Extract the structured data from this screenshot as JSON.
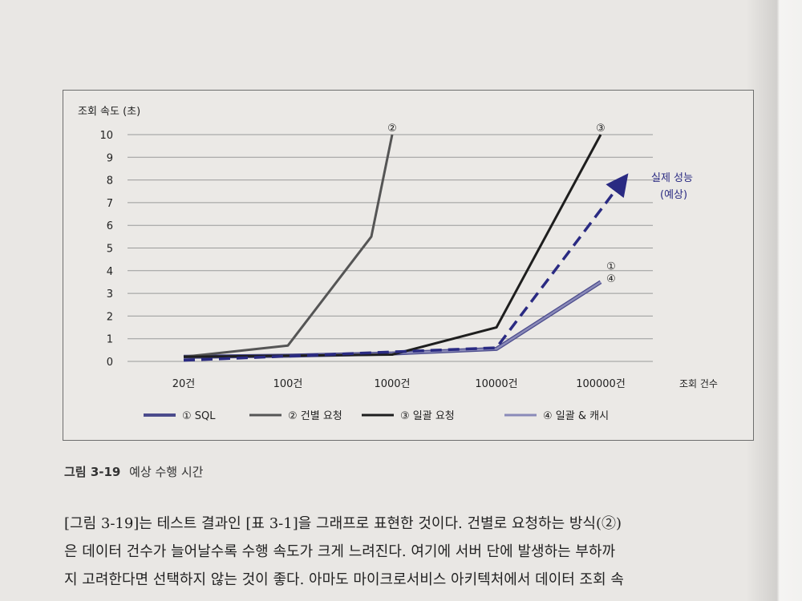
{
  "caption": {
    "figure_no": "그림 3-19",
    "title": "예상 수행 시간"
  },
  "body_lines": [
    "[그림 3-19]는 테스트 결과인 [표 3-1]을 그래프로 표현한 것이다. 건별로 요청하는 방식(②)",
    "은 데이터 건수가 늘어날수록 수행 속도가 크게 느려진다. 여기에 서버 단에 발생하는 부하까",
    "지 고려한다면 선택하지 않는 것이 좋다. 아마도 마이크로서비스 아키텍처에서 데이터 조회 속"
  ],
  "colors": {
    "sql": "#4b4b8c",
    "single": "#555555",
    "batch": "#1e1e1e",
    "batch_cache": "#8a8ab8",
    "actual": "#2a2a82",
    "grid": "#9a9a9a"
  },
  "chart_data": {
    "type": "line",
    "ylabel": "조회 속도 (초)",
    "xlabel": "조회 건수",
    "categories": [
      "20건",
      "100건",
      "1000건",
      "10000건",
      "100000건"
    ],
    "yticks": [
      0,
      1,
      2,
      3,
      4,
      5,
      6,
      7,
      8,
      9,
      10
    ],
    "ylim": [
      0,
      10
    ],
    "grid": true,
    "legend_position": "bottom",
    "series": [
      {
        "key": "sql",
        "name": "① SQL",
        "values": [
          0.2,
          0.25,
          0.35,
          0.55,
          3.5
        ]
      },
      {
        "key": "single",
        "name": "② 건별 요청",
        "x": [
          0,
          1,
          1.8,
          2.0
        ],
        "values": [
          0.2,
          0.7,
          5.5,
          10
        ]
      },
      {
        "key": "batch",
        "name": "③ 일괄 요청",
        "values": [
          0.2,
          0.25,
          0.3,
          1.5,
          10
        ]
      },
      {
        "key": "batch_cache",
        "name": "④ 일괄 & 캐시",
        "values": [
          0.2,
          0.25,
          0.35,
          0.55,
          3.5
        ]
      }
    ],
    "actual_line": {
      "label_line1": "실제 성능",
      "label_line2": "(예상)",
      "x": [
        0,
        3,
        4.2
      ],
      "values": [
        0.05,
        0.6,
        7.9
      ]
    },
    "annotations": [
      {
        "text": "②",
        "x": 2.0,
        "y": 10
      },
      {
        "text": "③",
        "x": 4.0,
        "y": 10
      },
      {
        "text": "①",
        "x": 4.1,
        "y": 3.9
      },
      {
        "text": "④",
        "x": 4.1,
        "y": 3.35
      }
    ]
  }
}
